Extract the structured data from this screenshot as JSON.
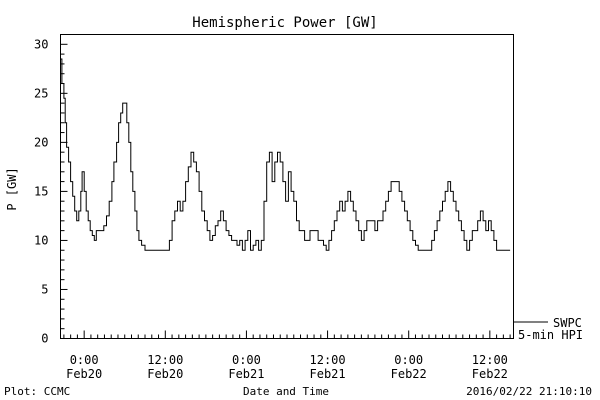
{
  "chart_data": {
    "type": "line",
    "title": "Hemispheric Power [GW]",
    "ylabel": "P [GW]",
    "xlabel": "Date and Time",
    "ylim": [
      0,
      31
    ],
    "yticks": [
      0,
      5,
      10,
      15,
      20,
      25,
      30
    ],
    "xlim_hours": [
      -3.5,
      63.5
    ],
    "xtick_hours": [
      0,
      12,
      24,
      36,
      48,
      60
    ],
    "xticks": [
      {
        "time": "0:00",
        "date": "Feb20"
      },
      {
        "time": "12:00",
        "date": "Feb20"
      },
      {
        "time": "0:00",
        "date": "Feb21"
      },
      {
        "time": "12:00",
        "date": "Feb21"
      },
      {
        "time": "0:00",
        "date": "Feb22"
      },
      {
        "time": "12:00",
        "date": "Feb22"
      }
    ],
    "grid": false,
    "legend": {
      "placement": "bottom-right",
      "entries": [
        "SWPC",
        "5-min HPI"
      ]
    },
    "series": [
      {
        "name": "SWPC",
        "points": [
          [
            -3.5,
            28.5
          ],
          [
            -3.3,
            26
          ],
          [
            -3.0,
            24.5
          ],
          [
            -2.8,
            22
          ],
          [
            -2.6,
            19.5
          ],
          [
            -2.3,
            18
          ],
          [
            -2.0,
            16
          ],
          [
            -1.7,
            14.5
          ],
          [
            -1.4,
            13
          ],
          [
            -1.1,
            12
          ],
          [
            -0.8,
            13
          ],
          [
            -0.5,
            15
          ],
          [
            -0.3,
            17
          ],
          [
            0.0,
            15
          ],
          [
            0.3,
            13
          ],
          [
            0.6,
            12
          ],
          [
            0.9,
            11
          ],
          [
            1.2,
            10.5
          ],
          [
            1.5,
            10
          ],
          [
            1.8,
            11
          ],
          [
            2.1,
            11
          ],
          [
            2.5,
            11
          ],
          [
            2.9,
            11.5
          ],
          [
            3.3,
            12.5
          ],
          [
            3.7,
            14
          ],
          [
            4.1,
            16
          ],
          [
            4.4,
            18
          ],
          [
            4.8,
            20
          ],
          [
            5.1,
            22
          ],
          [
            5.4,
            23
          ],
          [
            5.7,
            24
          ],
          [
            6.0,
            24
          ],
          [
            6.3,
            22
          ],
          [
            6.6,
            20
          ],
          [
            6.9,
            17
          ],
          [
            7.2,
            15
          ],
          [
            7.5,
            13
          ],
          [
            7.8,
            11
          ],
          [
            8.1,
            10
          ],
          [
            8.5,
            9.5
          ],
          [
            9.0,
            9
          ],
          [
            10.0,
            9
          ],
          [
            11.0,
            9
          ],
          [
            12.0,
            9
          ],
          [
            12.6,
            10
          ],
          [
            13.0,
            12
          ],
          [
            13.4,
            13
          ],
          [
            13.8,
            14
          ],
          [
            14.2,
            13
          ],
          [
            14.6,
            14
          ],
          [
            15.0,
            16
          ],
          [
            15.4,
            17.5
          ],
          [
            15.8,
            19
          ],
          [
            16.2,
            18
          ],
          [
            16.6,
            17
          ],
          [
            17.0,
            15
          ],
          [
            17.4,
            13
          ],
          [
            17.8,
            12
          ],
          [
            18.2,
            11
          ],
          [
            18.6,
            10
          ],
          [
            19.0,
            10.5
          ],
          [
            19.4,
            11.5
          ],
          [
            19.8,
            12
          ],
          [
            20.2,
            13
          ],
          [
            20.6,
            12
          ],
          [
            21.0,
            11
          ],
          [
            21.4,
            10.5
          ],
          [
            21.8,
            10
          ],
          [
            22.2,
            10
          ],
          [
            22.6,
            9.5
          ],
          [
            23.0,
            10
          ],
          [
            23.4,
            9
          ],
          [
            23.8,
            10
          ],
          [
            24.2,
            11
          ],
          [
            24.6,
            9
          ],
          [
            25.0,
            9.5
          ],
          [
            25.4,
            10
          ],
          [
            25.8,
            9
          ],
          [
            26.2,
            10
          ],
          [
            26.6,
            14
          ],
          [
            27.0,
            18
          ],
          [
            27.4,
            19
          ],
          [
            27.8,
            16
          ],
          [
            28.2,
            18
          ],
          [
            28.6,
            19
          ],
          [
            29.0,
            18
          ],
          [
            29.4,
            16
          ],
          [
            29.8,
            14
          ],
          [
            30.2,
            17
          ],
          [
            30.6,
            15
          ],
          [
            31.0,
            14
          ],
          [
            31.4,
            12
          ],
          [
            31.8,
            11
          ],
          [
            32.2,
            11
          ],
          [
            32.6,
            10
          ],
          [
            33.0,
            10
          ],
          [
            33.4,
            11
          ],
          [
            33.8,
            11
          ],
          [
            34.2,
            11
          ],
          [
            34.6,
            10
          ],
          [
            35.0,
            10
          ],
          [
            35.4,
            9.5
          ],
          [
            35.8,
            9
          ],
          [
            36.2,
            10
          ],
          [
            36.6,
            11
          ],
          [
            37.0,
            12
          ],
          [
            37.4,
            13
          ],
          [
            37.8,
            14
          ],
          [
            38.2,
            13
          ],
          [
            38.6,
            14
          ],
          [
            39.0,
            15
          ],
          [
            39.4,
            14
          ],
          [
            39.8,
            13
          ],
          [
            40.2,
            12
          ],
          [
            40.6,
            11
          ],
          [
            41.0,
            10
          ],
          [
            41.4,
            11
          ],
          [
            41.8,
            12
          ],
          [
            42.2,
            12
          ],
          [
            42.6,
            12
          ],
          [
            43.0,
            11
          ],
          [
            43.4,
            12
          ],
          [
            43.8,
            12
          ],
          [
            44.2,
            13
          ],
          [
            44.6,
            14
          ],
          [
            45.0,
            15
          ],
          [
            45.4,
            16
          ],
          [
            45.8,
            16
          ],
          [
            46.2,
            16
          ],
          [
            46.6,
            15
          ],
          [
            47.0,
            14
          ],
          [
            47.4,
            13
          ],
          [
            47.8,
            12
          ],
          [
            48.2,
            11
          ],
          [
            48.6,
            10
          ],
          [
            49.0,
            9.5
          ],
          [
            49.4,
            9
          ],
          [
            50.0,
            9
          ],
          [
            51.0,
            9
          ],
          [
            51.4,
            10
          ],
          [
            51.8,
            11
          ],
          [
            52.2,
            12
          ],
          [
            52.6,
            13
          ],
          [
            53.0,
            14
          ],
          [
            53.4,
            15
          ],
          [
            53.8,
            16
          ],
          [
            54.2,
            15
          ],
          [
            54.6,
            14
          ],
          [
            55.0,
            13
          ],
          [
            55.4,
            12
          ],
          [
            55.8,
            11
          ],
          [
            56.2,
            10
          ],
          [
            56.6,
            9
          ],
          [
            57.0,
            10
          ],
          [
            57.4,
            11
          ],
          [
            57.8,
            11
          ],
          [
            58.2,
            12
          ],
          [
            58.6,
            13
          ],
          [
            59.0,
            12
          ],
          [
            59.4,
            11
          ],
          [
            59.8,
            12
          ],
          [
            60.2,
            11
          ],
          [
            60.6,
            10
          ],
          [
            61.0,
            9
          ],
          [
            61.5,
            9
          ],
          [
            62.0,
            9
          ],
          [
            62.5,
            9
          ],
          [
            63.0,
            9
          ]
        ]
      },
      {
        "name": "5-min HPI",
        "points": []
      }
    ]
  },
  "footer": {
    "left": "Plot: CCMC",
    "right": "2016/02/22 21:10:10"
  }
}
